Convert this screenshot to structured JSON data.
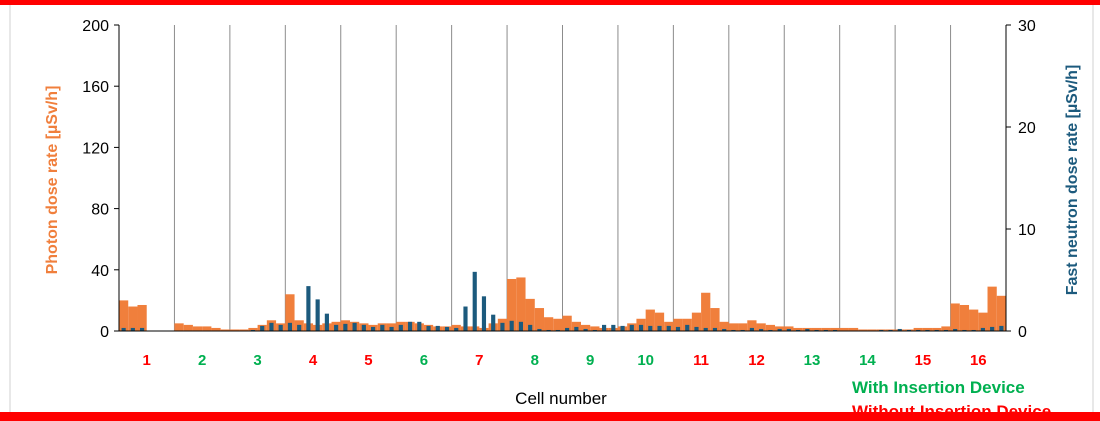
{
  "chart_data": {
    "type": "bar",
    "xlabel": "Cell number",
    "ylabel_left": "Photon dose rate  [µSv/h]",
    "ylabel_right": "Fast neutron dose rate  [µSv/h]",
    "ylim_left": [
      0,
      200
    ],
    "yticks_left": [
      0,
      40,
      80,
      120,
      160,
      200
    ],
    "ylim_right": [
      0,
      30
    ],
    "yticks_right": [
      0,
      10,
      20,
      30
    ],
    "grid": "vertical cell separators",
    "legend": [
      {
        "label": "With Insertion Device",
        "color": "#00b050"
      },
      {
        "label": "Without Insertion Device",
        "color": "#ff0000"
      }
    ],
    "cells": [
      {
        "label": "1",
        "color": "#ff0000"
      },
      {
        "label": "2",
        "color": "#00b050"
      },
      {
        "label": "3",
        "color": "#00b050"
      },
      {
        "label": "4",
        "color": "#ff0000"
      },
      {
        "label": "5",
        "color": "#ff0000"
      },
      {
        "label": "6",
        "color": "#00b050"
      },
      {
        "label": "7",
        "color": "#ff0000"
      },
      {
        "label": "8",
        "color": "#00b050"
      },
      {
        "label": "9",
        "color": "#00b050"
      },
      {
        "label": "10",
        "color": "#00b050"
      },
      {
        "label": "11",
        "color": "#ff0000"
      },
      {
        "label": "12",
        "color": "#ff0000"
      },
      {
        "label": "13",
        "color": "#00b050"
      },
      {
        "label": "14",
        "color": "#00b050"
      },
      {
        "label": "15",
        "color": "#ff0000"
      },
      {
        "label": "16",
        "color": "#ff0000"
      }
    ],
    "series": [
      {
        "name": "Photon dose rate",
        "axis": "left",
        "color": "#f07f3c",
        "values": [
          [
            20,
            16,
            17,
            0,
            0,
            0
          ],
          [
            5,
            4,
            3,
            3,
            2,
            1
          ],
          [
            1,
            1,
            2,
            4,
            7,
            5
          ],
          [
            24,
            7,
            5,
            4,
            5,
            6
          ],
          [
            7,
            6,
            5,
            4,
            5,
            5
          ],
          [
            6,
            6,
            5,
            4,
            3,
            3
          ],
          [
            4,
            3,
            3,
            2,
            5,
            8
          ],
          [
            34,
            35,
            21,
            15,
            9,
            8
          ],
          [
            10,
            6,
            4,
            3,
            2,
            2
          ],
          [
            3,
            5,
            8,
            14,
            12,
            6
          ],
          [
            8,
            8,
            12,
            25,
            15,
            6
          ],
          [
            5,
            5,
            7,
            5,
            4,
            3
          ],
          [
            3,
            2,
            2,
            2,
            2,
            2
          ],
          [
            2,
            2,
            1,
            1,
            1,
            1
          ],
          [
            1,
            1,
            2,
            2,
            2,
            3
          ],
          [
            18,
            17,
            14,
            12,
            29,
            23
          ]
        ]
      },
      {
        "name": "Fast neutron dose rate",
        "axis": "right",
        "color": "#1c5a7d",
        "values": [
          [
            0.3,
            0.3,
            0.3,
            0,
            0,
            0
          ],
          [
            0,
            0,
            0,
            0,
            0,
            0
          ],
          [
            0,
            0,
            0.1,
            0.5,
            0.8,
            0.6
          ],
          [
            0.8,
            0.6,
            4.4,
            3.1,
            1.7,
            0.6
          ],
          [
            0.7,
            0.8,
            0.6,
            0.4,
            0.6,
            0.4
          ],
          [
            0.6,
            0.9,
            0.9,
            0.5,
            0.5,
            0.4
          ],
          [
            0.3,
            2.4,
            5.8,
            3.4,
            1.6,
            0.8
          ],
          [
            1,
            0.9,
            0.6,
            0.2,
            0.1,
            0.1
          ],
          [
            0.3,
            0.4,
            0.2,
            0.1,
            0.6,
            0.6
          ],
          [
            0.5,
            0.6,
            0.6,
            0.5,
            0.5,
            0.5
          ],
          [
            0.4,
            0.6,
            0.4,
            0.3,
            0.3,
            0.2
          ],
          [
            0.1,
            0.1,
            0.3,
            0.2,
            0.1,
            0.2
          ],
          [
            0.2,
            0.1,
            0.2,
            0.1,
            0.1,
            0.1
          ],
          [
            0,
            0,
            0,
            0,
            0.1,
            0.1
          ],
          [
            0.2,
            0.1,
            0.1,
            0.1,
            0.1,
            0.1
          ],
          [
            0.2,
            0.1,
            0.1,
            0.3,
            0.4,
            0.5
          ]
        ]
      }
    ]
  }
}
